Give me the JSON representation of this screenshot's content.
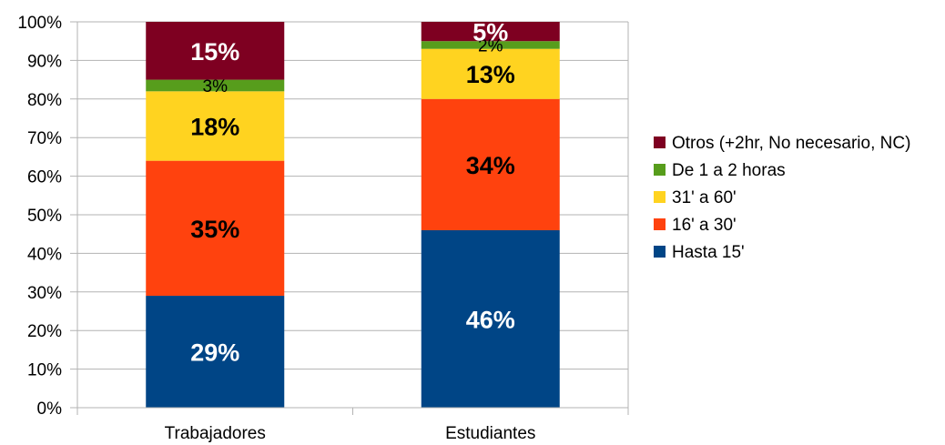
{
  "chart_data": {
    "type": "bar",
    "stacked": true,
    "normalized_percent": true,
    "categories": [
      "Trabajadores",
      "Estudiantes"
    ],
    "series": [
      {
        "name": "Hasta 15'",
        "color": "#004586",
        "label_color": "#ffffff",
        "values": [
          29,
          46
        ],
        "labels": [
          "29%",
          "46%"
        ]
      },
      {
        "name": "16' a 30'",
        "color": "#ff420e",
        "label_color": "#000000",
        "values": [
          35,
          34
        ],
        "labels": [
          "35%",
          "34%"
        ]
      },
      {
        "name": "31' a 60'",
        "color": "#ffd320",
        "label_color": "#000000",
        "values": [
          18,
          13
        ],
        "labels": [
          "18%",
          "13%"
        ]
      },
      {
        "name": "De 1 a 2 horas",
        "color": "#579d1c",
        "label_color": "#000000",
        "values": [
          3,
          2
        ],
        "labels": [
          "3%",
          "2%"
        ]
      },
      {
        "name": "Otros (+2hr, No necesario, NC)",
        "color": "#7e0021",
        "label_color": "#ffffff",
        "values": [
          15,
          5
        ],
        "labels": [
          "15%",
          "5%"
        ]
      }
    ],
    "y_ticks": [
      "0%",
      "10%",
      "20%",
      "30%",
      "40%",
      "50%",
      "60%",
      "70%",
      "80%",
      "90%",
      "100%"
    ],
    "ylim": [
      0,
      100
    ],
    "grid": true,
    "legend_position": "right",
    "title": "",
    "xlabel": "",
    "ylabel": ""
  }
}
